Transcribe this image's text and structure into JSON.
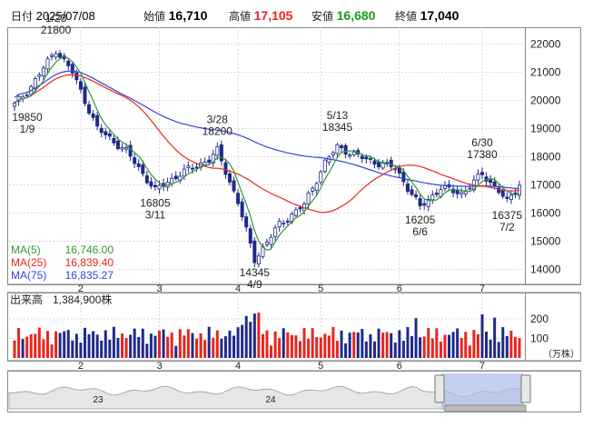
{
  "header": {
    "date_label": "日付",
    "date": "2025/07/08",
    "open_label": "始値",
    "open": "16,710",
    "high_label": "高値",
    "high": "17,105",
    "low_label": "安値",
    "low": "16,680",
    "close_label": "終値",
    "close": "17,040"
  },
  "colors": {
    "up": "#1e2a8a",
    "down": "#1e2a8a",
    "ma5": "#2f9a2f",
    "ma25": "#e8261e",
    "ma75": "#3344dd",
    "vol_up": "#e8261e",
    "vol_down": "#1e2a8a",
    "high_text": "#e8261e",
    "low_text": "#1a9a1a",
    "navigator_fill": "#aabce8"
  },
  "chart_data": {
    "type": "candlestick",
    "y_ticks": [
      "22000",
      "21000",
      "20000",
      "19000",
      "18000",
      "17000",
      "16000",
      "15000",
      "14000"
    ],
    "ylim": [
      13500,
      22600
    ],
    "x_ticks": [
      "2",
      "3",
      "4",
      "5",
      "6",
      "7"
    ],
    "annotations": [
      {
        "date": "1/23",
        "value": "21800",
        "pos": "above"
      },
      {
        "date": "1/9",
        "value": "19850",
        "pos": "below"
      },
      {
        "date": "3/11",
        "value": "16805",
        "pos": "below"
      },
      {
        "date": "3/28",
        "value": "18200",
        "pos": "above"
      },
      {
        "date": "4/9",
        "value": "14345",
        "pos": "below"
      },
      {
        "date": "5/13",
        "value": "18345",
        "pos": "above"
      },
      {
        "date": "6/6",
        "value": "16205",
        "pos": "below"
      },
      {
        "date": "6/30",
        "value": "17380",
        "pos": "above"
      },
      {
        "date": "7/2",
        "value": "16375",
        "pos": "below"
      }
    ],
    "legend": [
      {
        "name": "MA(5)",
        "value": "16,746.00"
      },
      {
        "name": "MA(25)",
        "value": "16,839.40"
      },
      {
        "name": "MA(75)",
        "value": "16,835.27"
      }
    ],
    "key_points": [
      [
        0,
        19850
      ],
      [
        4,
        20500
      ],
      [
        10,
        21800
      ],
      [
        14,
        21000
      ],
      [
        20,
        19000
      ],
      [
        27,
        18200
      ],
      [
        34,
        16805
      ],
      [
        40,
        17400
      ],
      [
        47,
        17900
      ],
      [
        49,
        18200
      ],
      [
        54,
        16400
      ],
      [
        58,
        14345
      ],
      [
        64,
        15600
      ],
      [
        70,
        16300
      ],
      [
        75,
        17800
      ],
      [
        78,
        18345
      ],
      [
        85,
        17900
      ],
      [
        92,
        17600
      ],
      [
        98,
        16205
      ],
      [
        103,
        16900
      ],
      [
        108,
        16700
      ],
      [
        113,
        17380
      ],
      [
        117,
        16800
      ],
      [
        119,
        16375
      ],
      [
        122,
        17040
      ]
    ],
    "month_start_index": [
      16,
      35,
      54,
      74,
      93,
      113
    ],
    "series": [
      {
        "name": "MA(5)"
      },
      {
        "name": "MA(25)"
      },
      {
        "name": "MA(75)"
      }
    ],
    "volume": {
      "title": "出来高",
      "latest": "1,384,900株",
      "ticks": [
        "200",
        "100"
      ],
      "unit": "（万株）",
      "ylim": [
        0,
        260
      ]
    },
    "navigator": {
      "labels": [
        "23",
        "24"
      ]
    }
  }
}
